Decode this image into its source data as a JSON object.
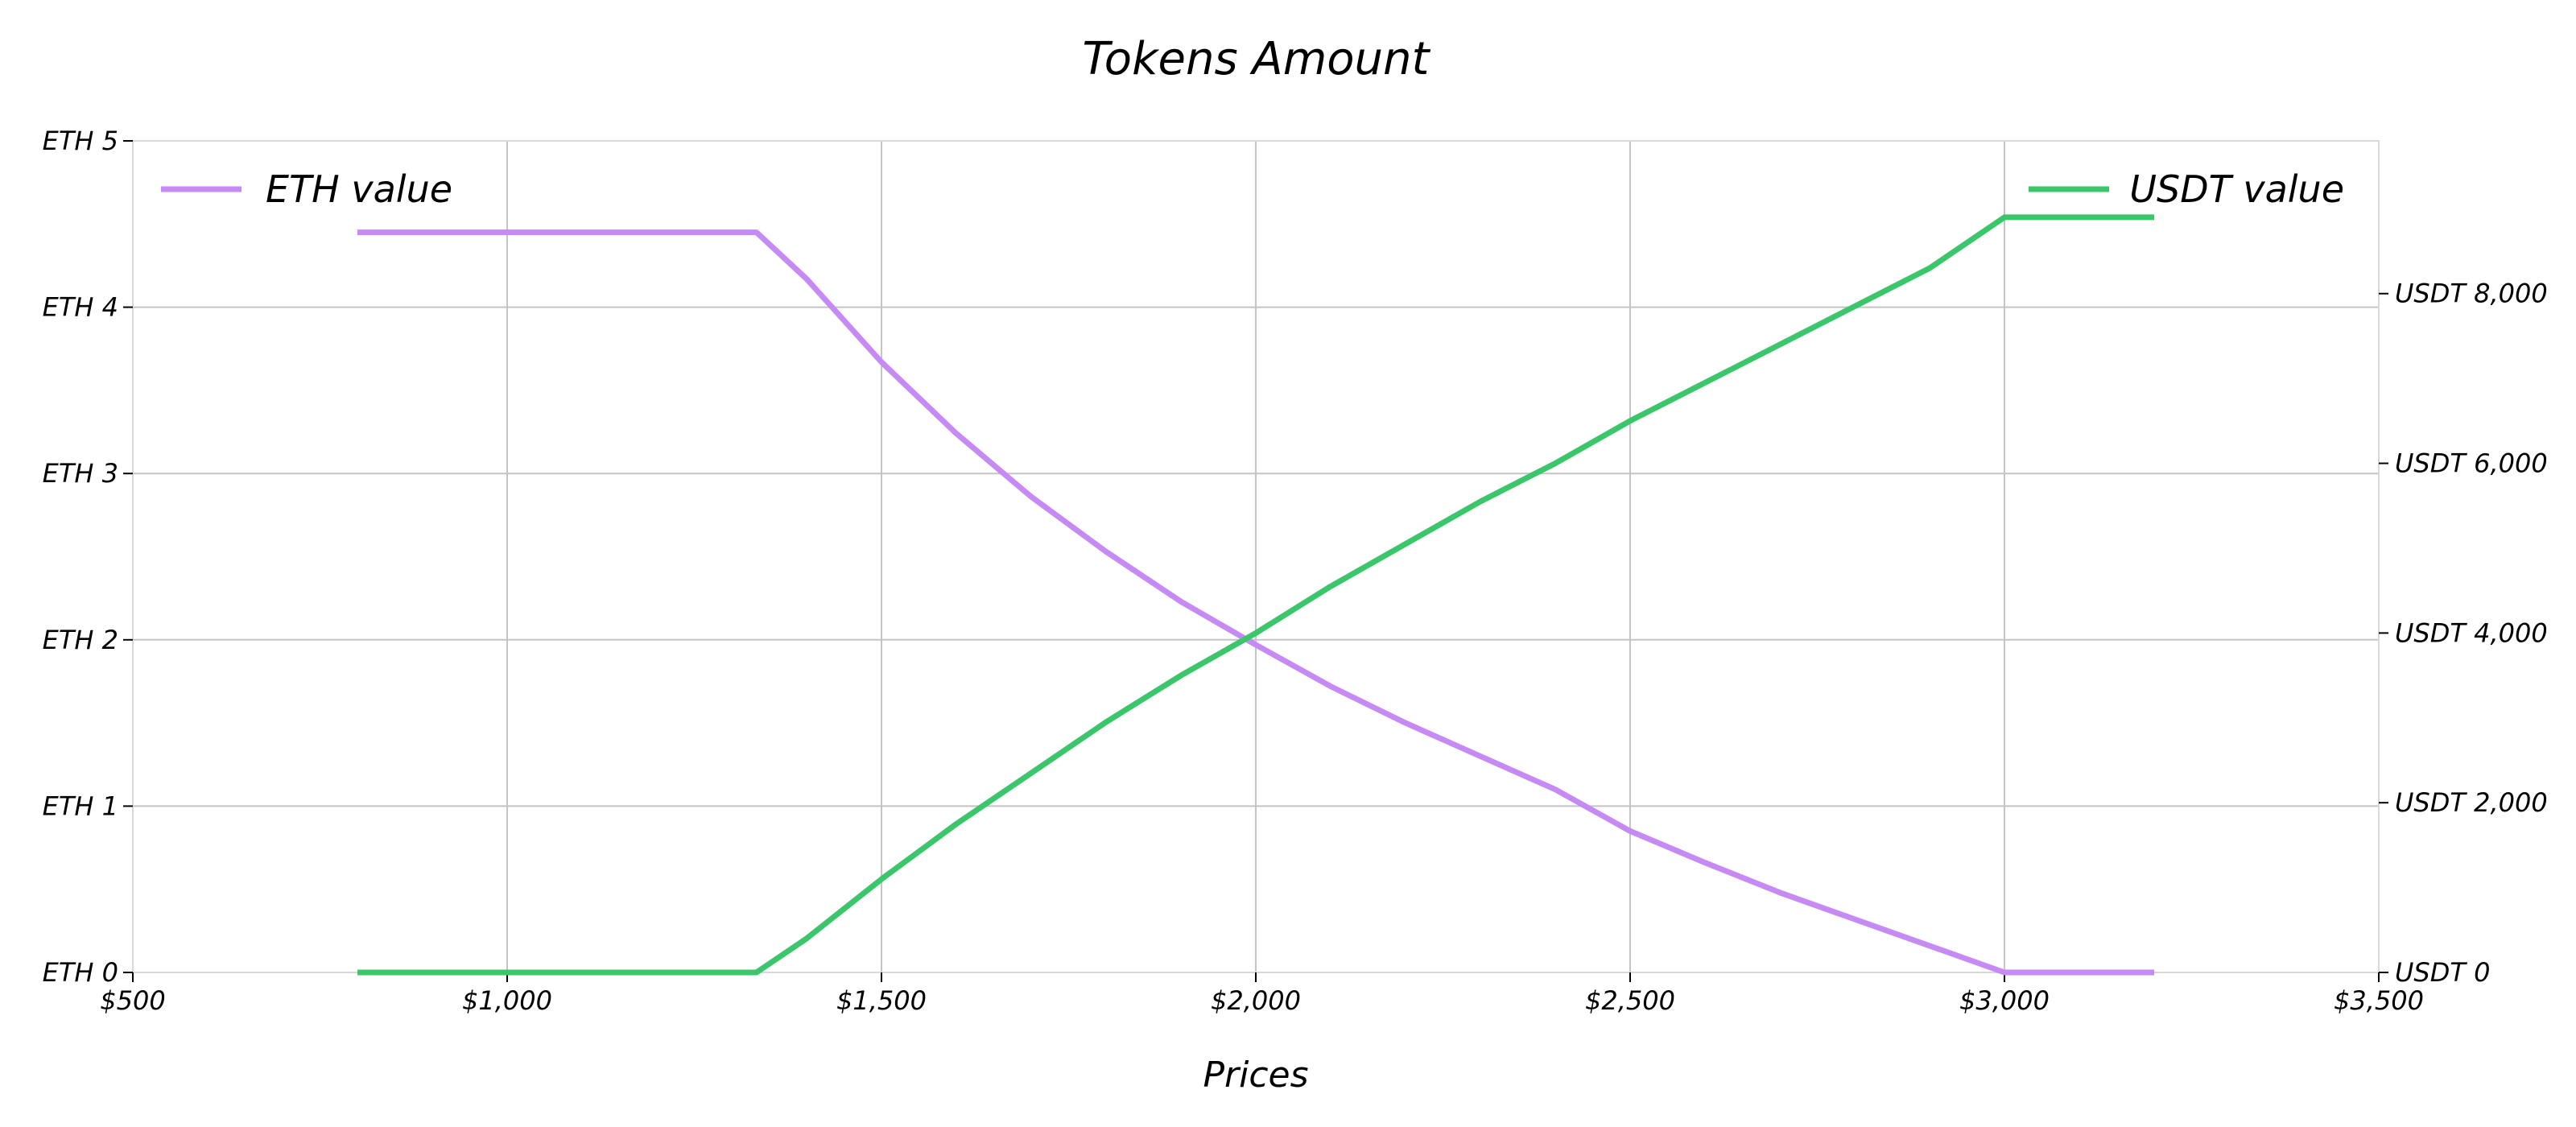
{
  "chart_data": {
    "type": "line",
    "title": "Tokens Amount",
    "xlabel": "Prices",
    "ylabel": "",
    "y2label": "",
    "xlim": [
      500,
      3500
    ],
    "ylim": [
      0,
      5
    ],
    "y2lim": [
      0,
      9800
    ],
    "x_ticks": [
      500,
      1000,
      1500,
      2000,
      2500,
      3000,
      3500
    ],
    "x_tick_labels": [
      "$500",
      "$1,000",
      "$1,500",
      "$2,000",
      "$2,500",
      "$3,000",
      "$3,500"
    ],
    "y_ticks": [
      0,
      1,
      2,
      3,
      4,
      5
    ],
    "y_tick_labels": [
      "ETH 0",
      "ETH 1",
      "ETH 2",
      "ETH 3",
      "ETH 4",
      "ETH 5"
    ],
    "y2_ticks": [
      0,
      2000,
      4000,
      6000,
      8000
    ],
    "y2_tick_labels": [
      "USDT 0",
      "USDT 2,000",
      "USDT 4,000",
      "USDT 6,000",
      "USDT 8,000"
    ],
    "grid": true,
    "legend": [
      {
        "name": "ETH value",
        "placement": "top-left"
      },
      {
        "name": "USDT value",
        "placement": "top-right"
      }
    ],
    "series": [
      {
        "name": "ETH value",
        "axis": "left",
        "color": "#c68af5",
        "x": [
          800,
          1000,
          1200,
          1333,
          1400,
          1500,
          1600,
          1700,
          1800,
          1900,
          2000,
          2100,
          2200,
          2300,
          2400,
          2500,
          2600,
          2700,
          2800,
          2900,
          3000,
          3100,
          3200
        ],
        "y": [
          4.45,
          4.45,
          4.45,
          4.45,
          4.17,
          3.67,
          3.24,
          2.86,
          2.53,
          2.23,
          1.97,
          1.72,
          1.5,
          1.3,
          1.1,
          0.85,
          0.66,
          0.48,
          0.32,
          0.16,
          0.0,
          0.0,
          0.0
        ]
      },
      {
        "name": "USDT value",
        "axis": "right",
        "color": "#3cc66b",
        "x": [
          800,
          1000,
          1200,
          1333,
          1400,
          1500,
          1600,
          1700,
          1800,
          1900,
          2000,
          2100,
          2200,
          2300,
          2400,
          2500,
          2600,
          2700,
          2800,
          2900,
          3000,
          3100,
          3200
        ],
        "y": [
          0,
          0,
          0,
          0,
          400,
          1100,
          1750,
          2350,
          2950,
          3500,
          4000,
          4550,
          5050,
          5550,
          6000,
          6500,
          6950,
          7400,
          7850,
          8300,
          8900,
          8900,
          8900
        ]
      }
    ]
  }
}
